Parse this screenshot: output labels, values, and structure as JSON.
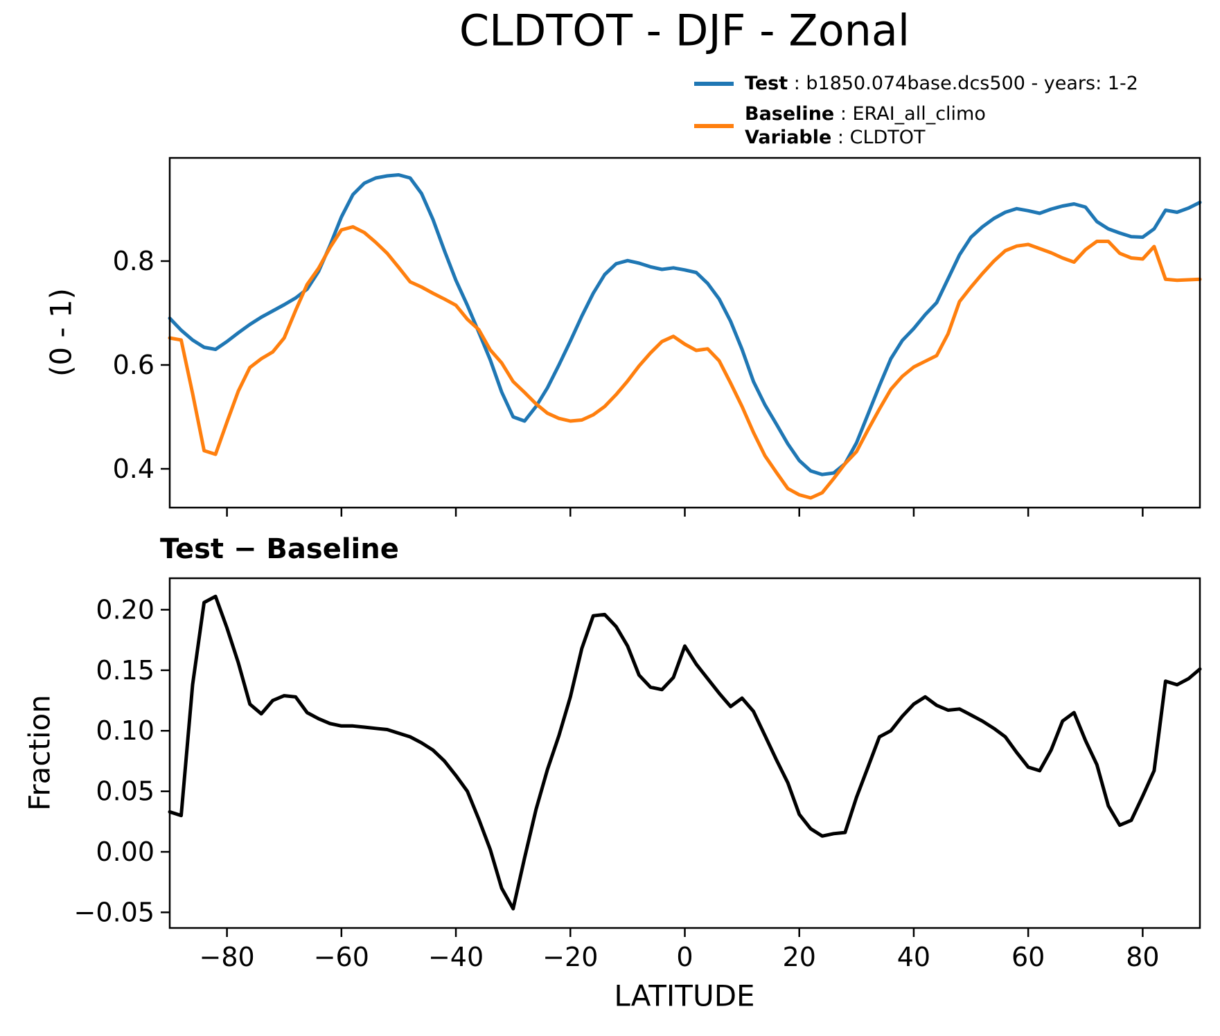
{
  "title": "CLDTOT - DJF - Zonal",
  "legend": {
    "test_key": "Test",
    "test_value": " : b1850.074base.dcs500 - years: 1-2",
    "baseline_key": "Baseline",
    "baseline_value": " : ERAI_all_climo",
    "variable_key": "Variable",
    "variable_value": " : CLDTOT"
  },
  "colors": {
    "test": "#1f77b4",
    "baseline": "#ff7f0e",
    "diff": "#000000"
  },
  "panels": {
    "top": {
      "ylabel": "(0 - 1)",
      "yticks": {
        "values": [
          0.4,
          0.6,
          0.8
        ],
        "labels": [
          "0.4",
          "0.6",
          "0.8"
        ]
      },
      "xticks": {
        "values": [
          -80,
          -60,
          -40,
          -20,
          0,
          20,
          40,
          60,
          80
        ],
        "labels": []
      }
    },
    "bottom": {
      "title": "Test − Baseline",
      "ylabel": "Fraction",
      "xlabel": "LATITUDE",
      "yticks": {
        "values": [
          -0.05,
          0.0,
          0.05,
          0.1,
          0.15,
          0.2
        ],
        "labels": [
          "−0.05",
          "0.00",
          "0.05",
          "0.10",
          "0.15",
          "0.20"
        ]
      },
      "xticks": {
        "values": [
          -80,
          -60,
          -40,
          -20,
          0,
          20,
          40,
          60,
          80
        ],
        "labels": [
          "−80",
          "−60",
          "−40",
          "−20",
          "0",
          "20",
          "40",
          "60",
          "80"
        ]
      }
    }
  },
  "chart_data": [
    {
      "type": "line",
      "title": "CLDTOT - DJF - Zonal",
      "xlabel": "LATITUDE",
      "ylabel": "(0 - 1)",
      "xlim": [
        -90,
        90
      ],
      "ylim": [
        0.3253,
        0.9987
      ],
      "grid": false,
      "legend_position": "upper right outside",
      "x": [
        -90,
        -88,
        -86,
        -84,
        -82,
        -80,
        -78,
        -76,
        -74,
        -72,
        -70,
        -68,
        -66,
        -64,
        -62,
        -60,
        -58,
        -56,
        -54,
        -52,
        -50,
        -48,
        -46,
        -44,
        -42,
        -40,
        -38,
        -36,
        -34,
        -32,
        -30,
        -28,
        -26,
        -24,
        -22,
        -20,
        -18,
        -16,
        -14,
        -12,
        -10,
        -8,
        -6,
        -4,
        -2,
        0,
        2,
        4,
        6,
        8,
        10,
        12,
        14,
        16,
        18,
        20,
        22,
        24,
        26,
        28,
        30,
        32,
        34,
        36,
        38,
        40,
        42,
        44,
        46,
        48,
        50,
        52,
        54,
        56,
        58,
        60,
        62,
        64,
        66,
        68,
        70,
        72,
        74,
        76,
        78,
        80,
        82,
        84,
        86,
        88,
        90
      ],
      "series": [
        {
          "name": "Test : b1850.074base.dcs500 - years: 1-2",
          "color": "#1f77b4",
          "values": [
            0.69,
            0.667,
            0.648,
            0.634,
            0.63,
            0.645,
            0.662,
            0.678,
            0.692,
            0.704,
            0.716,
            0.729,
            0.746,
            0.78,
            0.83,
            0.885,
            0.928,
            0.95,
            0.96,
            0.964,
            0.966,
            0.96,
            0.93,
            0.88,
            0.82,
            0.763,
            0.715,
            0.663,
            0.61,
            0.548,
            0.5,
            0.492,
            0.52,
            0.556,
            0.6,
            0.646,
            0.694,
            0.738,
            0.774,
            0.795,
            0.801,
            0.796,
            0.789,
            0.784,
            0.787,
            0.783,
            0.778,
            0.757,
            0.727,
            0.684,
            0.63,
            0.568,
            0.523,
            0.486,
            0.448,
            0.416,
            0.396,
            0.389,
            0.392,
            0.41,
            0.45,
            0.505,
            0.56,
            0.612,
            0.647,
            0.67,
            0.697,
            0.72,
            0.766,
            0.812,
            0.846,
            0.866,
            0.882,
            0.894,
            0.901,
            0.897,
            0.892,
            0.9,
            0.906,
            0.91,
            0.904,
            0.876,
            0.862,
            0.854,
            0.847,
            0.846,
            0.862,
            0.898,
            0.894,
            0.902,
            0.913
          ]
        },
        {
          "name": "Baseline : ERAI_all_climo",
          "color": "#ff7f0e",
          "values": [
            0.652,
            0.648,
            0.545,
            0.435,
            0.428,
            0.49,
            0.55,
            0.595,
            0.612,
            0.625,
            0.652,
            0.705,
            0.755,
            0.786,
            0.826,
            0.86,
            0.866,
            0.855,
            0.836,
            0.815,
            0.788,
            0.76,
            0.75,
            0.738,
            0.727,
            0.715,
            0.688,
            0.668,
            0.629,
            0.604,
            0.568,
            0.547,
            0.525,
            0.507,
            0.497,
            0.492,
            0.494,
            0.504,
            0.52,
            0.543,
            0.569,
            0.598,
            0.623,
            0.645,
            0.655,
            0.64,
            0.628,
            0.631,
            0.608,
            0.565,
            0.52,
            0.47,
            0.425,
            0.393,
            0.362,
            0.35,
            0.344,
            0.354,
            0.381,
            0.41,
            0.433,
            0.475,
            0.515,
            0.553,
            0.578,
            0.596,
            0.607,
            0.618,
            0.66,
            0.722,
            0.75,
            0.776,
            0.8,
            0.82,
            0.829,
            0.832,
            0.824,
            0.816,
            0.806,
            0.798,
            0.822,
            0.838,
            0.838,
            0.815,
            0.806,
            0.804,
            0.828,
            0.765,
            0.763,
            0.764,
            0.765
          ]
        }
      ]
    },
    {
      "type": "line",
      "title": "Test − Baseline",
      "xlabel": "LATITUDE",
      "ylabel": "Fraction",
      "xlim": [
        -90,
        90
      ],
      "ylim": [
        -0.0629,
        0.226
      ],
      "grid": false,
      "x": [
        -90,
        -88,
        -86,
        -84,
        -82,
        -80,
        -78,
        -76,
        -74,
        -72,
        -70,
        -68,
        -66,
        -64,
        -62,
        -60,
        -58,
        -56,
        -54,
        -52,
        -50,
        -48,
        -46,
        -44,
        -42,
        -40,
        -38,
        -36,
        -34,
        -32,
        -30,
        -28,
        -26,
        -24,
        -22,
        -20,
        -18,
        -16,
        -14,
        -12,
        -10,
        -8,
        -6,
        -4,
        -2,
        0,
        2,
        4,
        6,
        8,
        10,
        12,
        14,
        16,
        18,
        20,
        22,
        24,
        26,
        28,
        30,
        32,
        34,
        36,
        38,
        40,
        42,
        44,
        46,
        48,
        50,
        52,
        54,
        56,
        58,
        60,
        62,
        64,
        66,
        68,
        70,
        72,
        74,
        76,
        78,
        80,
        82,
        84,
        86,
        88,
        90
      ],
      "series": [
        {
          "name": "Test − Baseline",
          "color": "#000000",
          "values": [
            0.033,
            0.03,
            0.138,
            0.206,
            0.211,
            0.185,
            0.156,
            0.122,
            0.114,
            0.125,
            0.129,
            0.128,
            0.115,
            0.11,
            0.106,
            0.104,
            0.104,
            0.103,
            0.102,
            0.101,
            0.098,
            0.095,
            0.09,
            0.084,
            0.075,
            0.063,
            0.05,
            0.027,
            0.002,
            -0.03,
            -0.047,
            -0.005,
            0.035,
            0.068,
            0.096,
            0.128,
            0.168,
            0.195,
            0.196,
            0.186,
            0.17,
            0.146,
            0.136,
            0.134,
            0.144,
            0.17,
            0.155,
            0.143,
            0.131,
            0.12,
            0.127,
            0.116,
            0.096,
            0.076,
            0.057,
            0.031,
            0.019,
            0.013,
            0.015,
            0.016,
            0.045,
            0.07,
            0.095,
            0.1,
            0.112,
            0.122,
            0.128,
            0.121,
            0.117,
            0.118,
            0.113,
            0.108,
            0.102,
            0.095,
            0.082,
            0.07,
            0.067,
            0.084,
            0.108,
            0.115,
            0.092,
            0.072,
            0.038,
            0.022,
            0.026,
            0.046,
            0.067,
            0.141,
            0.138,
            0.143,
            0.151
          ]
        }
      ]
    }
  ]
}
